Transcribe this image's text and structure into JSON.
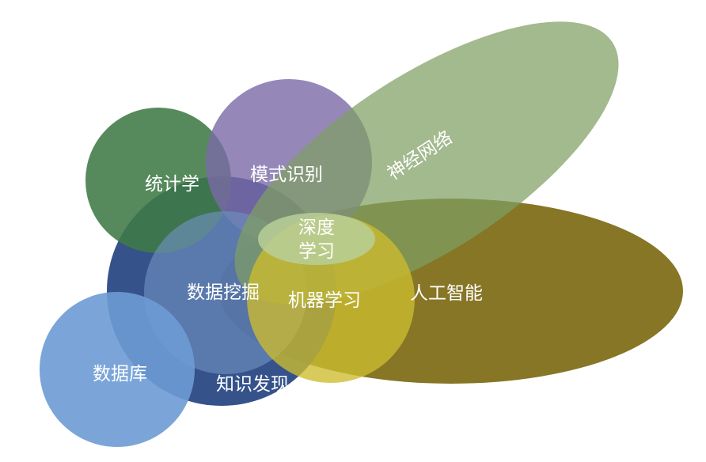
{
  "diagram": {
    "labels": {
      "statistics": "统计学",
      "pattern_recognition": "模式识别",
      "neural_networks": "神经网络",
      "deep_learning_line1": "深度",
      "deep_learning_line2": "学习",
      "data_mining": "数据挖掘",
      "machine_learning": "机器学习",
      "artificial_intelligence": "人工智能",
      "database": "数据库",
      "knowledge_discovery": "知识发现"
    },
    "colors": {
      "statistics": "#3f7a45",
      "pattern_recognition": "#7a6aa8",
      "neural_networks": "#7f9e62",
      "knowledge_discovery": "#1f3f7e",
      "data_mining": "#6f8fbf",
      "database": "#6d9bd4",
      "artificial_intelligence": "#7f6f1a",
      "machine_learning": "#cdbd2e",
      "deep_learning": "#b8cf98"
    }
  }
}
